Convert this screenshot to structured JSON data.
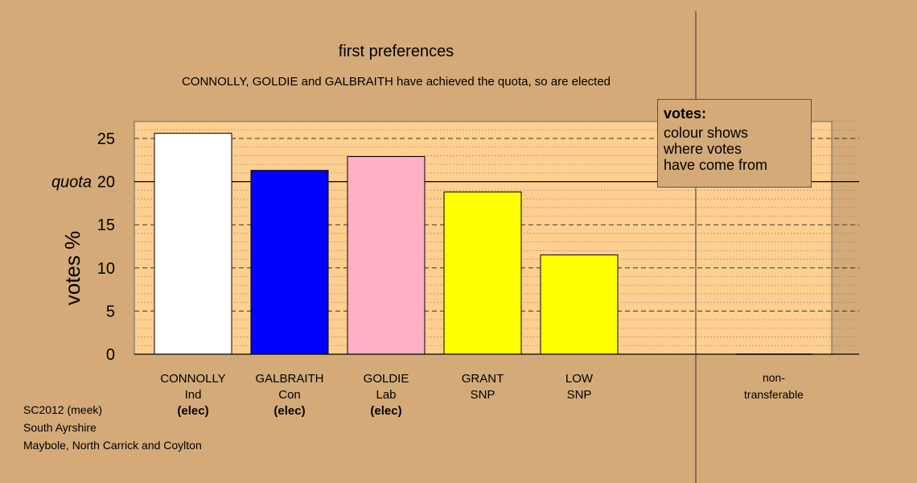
{
  "chart_data": {
    "type": "bar",
    "title": "first preferences",
    "subtitle": "CONNOLLY, GOLDIE and GALBRAITH have achieved the quota, so are elected",
    "ylabel": "votes %",
    "quota_label": "quota",
    "quota": 20,
    "ylim": [
      0,
      27
    ],
    "yticks": [
      0,
      5,
      10,
      15,
      20,
      25
    ],
    "grid": true,
    "bars": [
      {
        "name": "CONNOLLY",
        "party": "Ind",
        "status": "(elec)",
        "value": 25.6,
        "color": "#ffffff"
      },
      {
        "name": "GALBRAITH",
        "party": "Con",
        "status": "(elec)",
        "value": 21.3,
        "color": "#0000ff"
      },
      {
        "name": "GOLDIE",
        "party": "Lab",
        "status": "(elec)",
        "value": 22.9,
        "color": "#ffb0c4"
      },
      {
        "name": "GRANT",
        "party": "SNP",
        "status": "",
        "value": 18.8,
        "color": "#ffff00"
      },
      {
        "name": "LOW",
        "party": "SNP",
        "status": "",
        "value": 11.5,
        "color": "#ffff00"
      }
    ],
    "nontransferable": {
      "label_line1": "non-",
      "label_line2": "transferable",
      "value": 0
    }
  },
  "legend": {
    "title": "votes:",
    "text": "colour shows\nwhere votes\nhave come from"
  },
  "footer": [
    "SC2012 (meek)",
    "South Ayrshire",
    "Maybole, North Carrick and Coylton"
  ],
  "colors": {
    "background": "#d4aa78",
    "plot_background": "#ffcf8f"
  }
}
